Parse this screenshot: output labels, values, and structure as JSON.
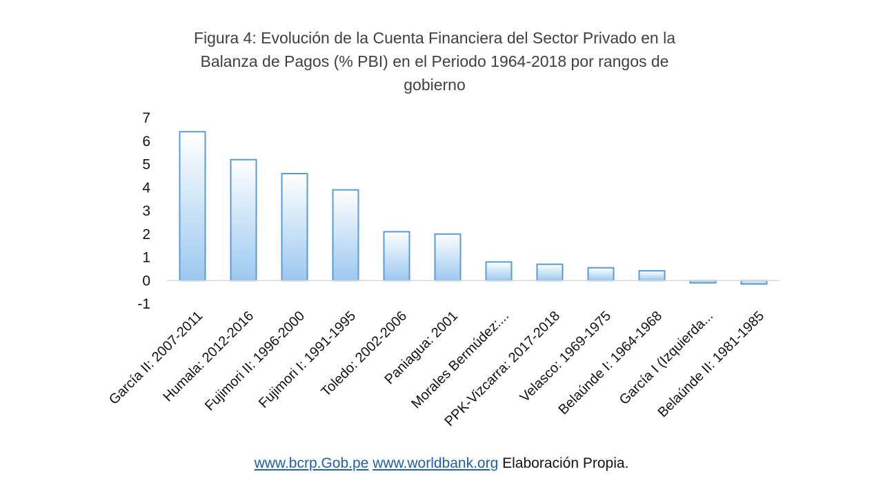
{
  "chart_data": {
    "type": "bar",
    "title_lines": [
      "Figura 4: Evolución de la Cuenta Financiera del Sector Privado en la",
      "Balanza de Pagos (% PBI) en el Periodo 1964-2018 por rangos de",
      "gobierno"
    ],
    "categories": [
      "García II: 2007-2011",
      "Humala: 2012-2016",
      "Fujimori II: 1996-2000",
      "Fujimori I: 1991-1995",
      "Toledo: 2002-2006",
      "Paniagua: 2001",
      "Morales Bermúdez:...",
      "PPK-Vizcarra: 2017-2018",
      "Velasco: 1969-1975",
      "Belaúnde I: 1964-1968",
      "García I (Izquierda...",
      "Belaúnde II: 1981-1985"
    ],
    "values": [
      6.4,
      5.2,
      4.6,
      3.9,
      2.1,
      2.0,
      0.8,
      0.7,
      0.55,
      0.42,
      -0.1,
      -0.15
    ],
    "ylim": [
      -1,
      7
    ],
    "yticks": [
      -1,
      0,
      1,
      2,
      3,
      4,
      5,
      6,
      7
    ],
    "grid": false,
    "legend": "none",
    "colors": {
      "bar_fill_top": "#ffffff",
      "bar_fill_bottom": "#9cc8ef",
      "bar_stroke": "#5b9bd5",
      "axis": "#d9d9d9"
    }
  },
  "source": {
    "link1": "www.bcrp.Gob.pe",
    "link2": "www.worldbank.org",
    "suffix": "Elaboración Propia."
  }
}
